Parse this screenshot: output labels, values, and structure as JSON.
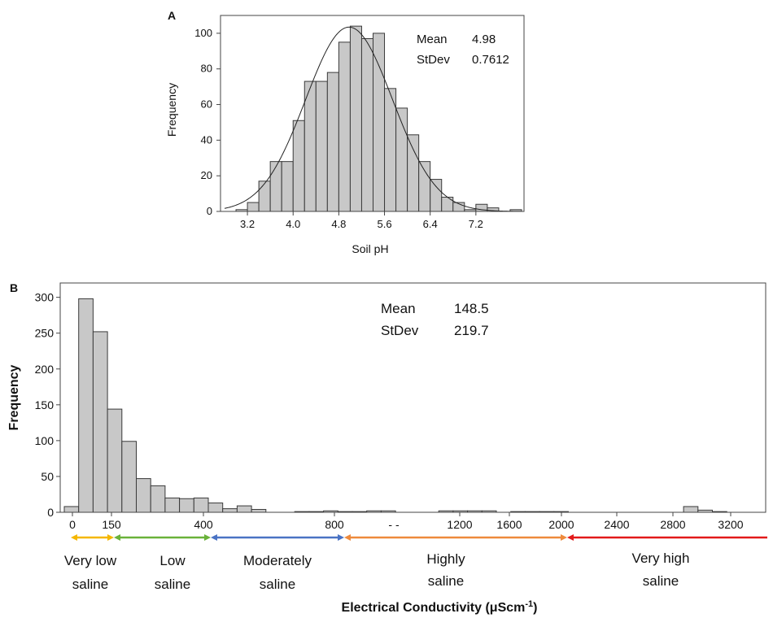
{
  "chart_data": [
    {
      "panel_label": "A",
      "type": "bar",
      "subtype": "histogram",
      "xlabel": "Soil pH",
      "ylabel": "Frequency",
      "xlim": [
        2.8,
        8.0
      ],
      "ylim": [
        0,
        110
      ],
      "xticks": [
        "3.2",
        "4.0",
        "4.8",
        "5.6",
        "6.4",
        "7.2"
      ],
      "yticks": [
        "0",
        "20",
        "40",
        "60",
        "80",
        "100"
      ],
      "bin_width": 0.2,
      "bins_start": [
        2.8,
        3.0,
        3.2,
        3.4,
        3.6,
        3.8,
        4.0,
        4.2,
        4.4,
        4.6,
        4.8,
        5.0,
        5.2,
        5.4,
        5.6,
        5.8,
        6.0,
        6.2,
        6.4,
        6.6,
        6.8,
        7.0,
        7.2,
        7.4,
        7.6,
        7.8
      ],
      "values": [
        0,
        1,
        5,
        17,
        28,
        28,
        51,
        73,
        73,
        78,
        95,
        104,
        97,
        100,
        69,
        58,
        43,
        28,
        18,
        8,
        5,
        1,
        4,
        2,
        0,
        1
      ],
      "fit_curve": "normal",
      "stats": [
        {
          "label": "Mean",
          "value": "4.98"
        },
        {
          "label": "StDev",
          "value": "0.7612"
        }
      ],
      "grid": false,
      "mean": 4.98,
      "stdev": 0.7612
    },
    {
      "panel_label": "B",
      "type": "bar",
      "subtype": "histogram",
      "xlabel": "Electrical Conductivity (μScm",
      "xlabel_superscript": "-1",
      "xlabel_suffix": ")",
      "ylabel": "Frequency",
      "ylim": [
        0,
        320
      ],
      "yticks": [
        "0",
        "50",
        "100",
        "150",
        "200",
        "250",
        "300"
      ],
      "xtick_labels": [
        "0",
        "150",
        "400",
        "800",
        "1200",
        "1600",
        "2000",
        "2400",
        "2800",
        "3200"
      ],
      "axis_break_mark": "- -",
      "bin_values": [
        8,
        298,
        252,
        144,
        99,
        47,
        37,
        20,
        19,
        20,
        13,
        5,
        9,
        4,
        0,
        0,
        1,
        1,
        2,
        1,
        1,
        2,
        2,
        0,
        0,
        0,
        2,
        2,
        2,
        2,
        0,
        1,
        1,
        1,
        1,
        0,
        0,
        0,
        0,
        0,
        0,
        0,
        0,
        8,
        3,
        1
      ],
      "stats": [
        {
          "label": "Mean",
          "value": "148.5"
        },
        {
          "label": "StDev",
          "value": "219.7"
        }
      ],
      "grid": false,
      "salinity_classes": [
        {
          "line1": "Very low",
          "line2": "saline",
          "color": "#f5b700"
        },
        {
          "line1": "Low",
          "line2": "saline",
          "color": "#6ab23a"
        },
        {
          "line1": "Moderately",
          "line2": "saline",
          "color": "#4a73c4"
        },
        {
          "line1": "Highly",
          "line2": "saline",
          "color": "#ee8a3c"
        },
        {
          "line1": "Very high",
          "line2": "saline",
          "color": "#e21a1a"
        }
      ]
    }
  ]
}
